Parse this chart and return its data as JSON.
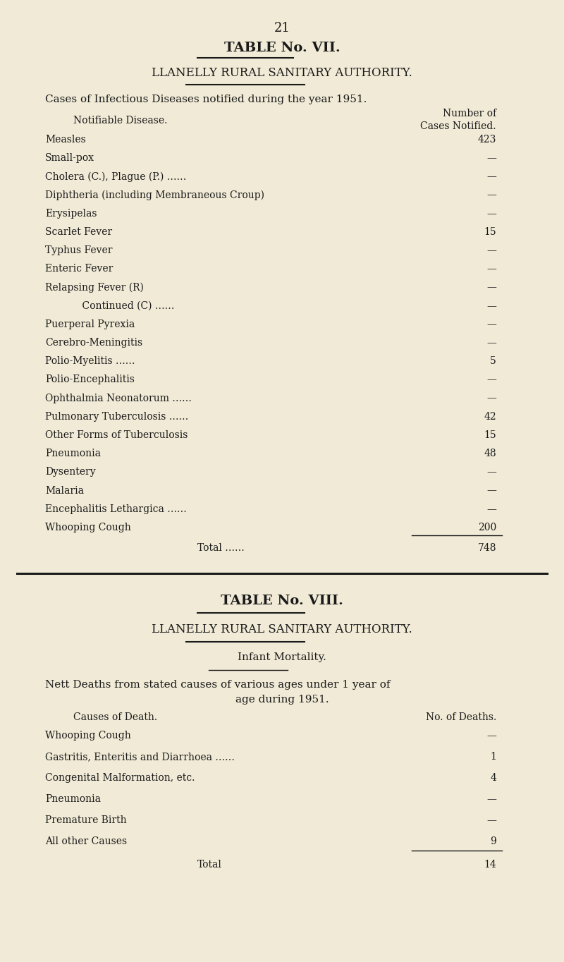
{
  "bg_color": "#f0ead6",
  "text_color": "#1a1a1a",
  "page_number": "21",
  "table1": {
    "title_line1": "TABLE No. VII.",
    "authority": "LLANELLY RURAL SANITARY AUTHORITY.",
    "subtitle": "Cases of Infectious Diseases notified during the year 1951.",
    "col_header_left": "Notifiable Disease.",
    "col_header_right_line1": "Number of",
    "col_header_right_line2": "Cases Notified.",
    "rows": [
      [
        "Measles",
        "423"
      ],
      [
        "Small-pox",
        "—"
      ],
      [
        "Cholera (C.), Plague (P.) ……",
        "—"
      ],
      [
        "Diphtheria (including Membraneous Croup)",
        "—"
      ],
      [
        "Erysipelas",
        "—"
      ],
      [
        "Scarlet Fever",
        "15"
      ],
      [
        "Typhus Fever",
        "—"
      ],
      [
        "Enteric Fever",
        "—"
      ],
      [
        "Relapsing Fever (R)",
        "—"
      ],
      [
        "            Continued (C) ……",
        "—"
      ],
      [
        "Puerperal Pyrexia",
        "—"
      ],
      [
        "Cerebro-Meningitis",
        "—"
      ],
      [
        "Polio-Myelitis ……",
        "5"
      ],
      [
        "Polio-Encephalitis",
        "—"
      ],
      [
        "Ophthalmia Neonatorum ……",
        "—"
      ],
      [
        "Pulmonary Tuberculosis ……",
        "42"
      ],
      [
        "Other Forms of Tuberculosis",
        "15"
      ],
      [
        "Pneumonia",
        "48"
      ],
      [
        "Dysentery",
        "—"
      ],
      [
        "Malaria",
        "—"
      ],
      [
        "Encephalitis Lethargica ……",
        "—"
      ],
      [
        "Whooping Cough",
        "200"
      ]
    ],
    "total_label": "Total ……",
    "total_value": "748"
  },
  "table2": {
    "title_line1": "TABLE No. VIII.",
    "authority": "LLANELLY RURAL SANITARY AUTHORITY.",
    "subtitle_line1": "Infant Mortality.",
    "subtitle_line2": "Nett Deaths from stated causes of various ages under 1 year of",
    "subtitle_line3": "age during 1951.",
    "col_header_left": "Causes of Death.",
    "col_header_right": "No. of Deaths.",
    "rows": [
      [
        "Whooping Cough",
        "—"
      ],
      [
        "Gastritis, Enteritis and Diarrhoea ……",
        "1"
      ],
      [
        "Congenital Malformation, etc.",
        "4"
      ],
      [
        "Pneumonia",
        "—"
      ],
      [
        "Premature Birth",
        "—"
      ],
      [
        "All other Causes",
        "9"
      ]
    ],
    "total_label": "Total",
    "total_value": "14"
  }
}
